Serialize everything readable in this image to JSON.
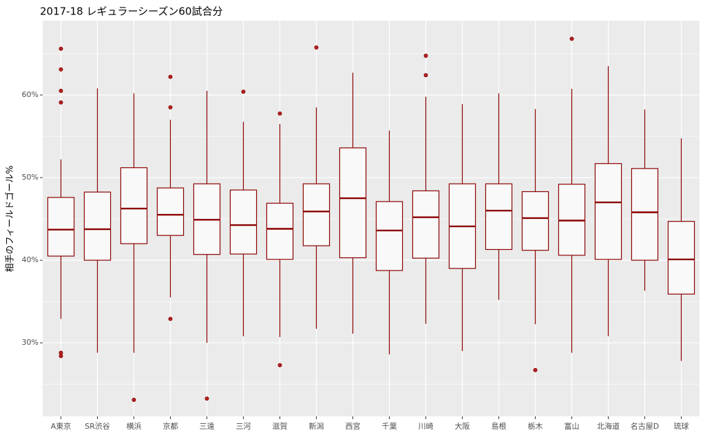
{
  "chart_data": {
    "type": "boxplot",
    "title": "2017-18 レギュラーシーズン60試合分",
    "y_label": "相手のフィールドゴール%",
    "categories": [
      "A東京",
      "SR渋谷",
      "横浜",
      "京都",
      "三遠",
      "三河",
      "滋賀",
      "新潟",
      "西宮",
      "千葉",
      "川崎",
      "大阪",
      "島根",
      "栃木",
      "富山",
      "北海道",
      "名古屋D",
      "琉球"
    ],
    "boxes": [
      {
        "whislo": 32.9,
        "q1": 40.5,
        "med": 43.7,
        "q3": 47.6,
        "whishi": 52.2,
        "outliers": [
          65.6,
          63.1,
          60.5,
          59.1,
          28.8,
          28.4
        ]
      },
      {
        "whislo": 28.8,
        "q1": 40,
        "med": 43.75,
        "q3": 48.25,
        "whishi": 60.8,
        "outliers": []
      },
      {
        "whislo": 28.8,
        "q1": 42,
        "med": 46.25,
        "q3": 51.2,
        "whishi": 60.2,
        "outliers": [
          23.1
        ]
      },
      {
        "whislo": 35.5,
        "q1": 43,
        "med": 45.5,
        "q3": 48.75,
        "whishi": 57,
        "outliers": [
          62.2,
          58.5,
          32.9
        ]
      },
      {
        "whislo": 30,
        "q1": 40.7,
        "med": 44.9,
        "q3": 49.25,
        "whishi": 60.5,
        "outliers": [
          23.25
        ]
      },
      {
        "whislo": 30.8,
        "q1": 40.75,
        "med": 44.25,
        "q3": 48.5,
        "whishi": 56.75,
        "outliers": [
          60.4
        ]
      },
      {
        "whislo": 30.7,
        "q1": 40.1,
        "med": 43.8,
        "q3": 46.9,
        "whishi": 56.5,
        "outliers": [
          57.75,
          27.3
        ]
      },
      {
        "whislo": 31.7,
        "q1": 41.75,
        "med": 45.9,
        "q3": 49.25,
        "whishi": 58.5,
        "outliers": [
          65.75
        ]
      },
      {
        "whislo": 31.1,
        "q1": 40.3,
        "med": 47.5,
        "q3": 53.6,
        "whishi": 62.7,
        "outliers": []
      },
      {
        "whislo": 28.6,
        "q1": 38.75,
        "med": 43.6,
        "q3": 47.1,
        "whishi": 55.7,
        "outliers": []
      },
      {
        "whislo": 32.3,
        "q1": 40.25,
        "med": 45.2,
        "q3": 48.4,
        "whishi": 59.8,
        "outliers": [
          64.75,
          62.4
        ]
      },
      {
        "whislo": 29,
        "q1": 39,
        "med": 44.1,
        "q3": 49.25,
        "whishi": 58.9,
        "outliers": []
      },
      {
        "whislo": 35.2,
        "q1": 41.3,
        "med": 46,
        "q3": 49.25,
        "whishi": 60.2,
        "outliers": []
      },
      {
        "whislo": 32.25,
        "q1": 41.2,
        "med": 45.1,
        "q3": 48.3,
        "whishi": 58.3,
        "outliers": [
          26.7
        ]
      },
      {
        "whislo": 28.8,
        "q1": 40.6,
        "med": 44.8,
        "q3": 49.2,
        "whishi": 60.75,
        "outliers": [
          66.8
        ]
      },
      {
        "whislo": 30.8,
        "q1": 40.1,
        "med": 47,
        "q3": 51.7,
        "whishi": 63.5,
        "outliers": []
      },
      {
        "whislo": 36.3,
        "q1": 40,
        "med": 45.8,
        "q3": 51.1,
        "whishi": 58.25,
        "outliers": []
      },
      {
        "whislo": 27.8,
        "q1": 35.9,
        "med": 40.1,
        "q3": 44.7,
        "whishi": 54.75,
        "outliers": []
      }
    ],
    "color": "#8b0000",
    "box_fill": "#f9f9f9",
    "outlier_color": "#b22222",
    "ylim": [
      21.1,
      69
    ],
    "yticks": [
      {
        "value": 30,
        "label": "30%"
      },
      {
        "value": 40,
        "label": "40%"
      },
      {
        "value": 50,
        "label": "50%"
      },
      {
        "value": 60,
        "label": "60%"
      }
    ],
    "minor_yticks": [
      25,
      35,
      45,
      55,
      65
    ],
    "grid": true
  }
}
